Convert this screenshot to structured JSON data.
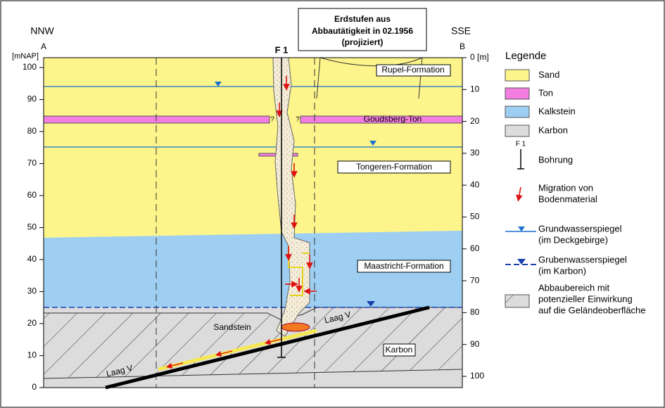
{
  "title": {
    "lines": [
      "Erdstufen aus",
      "Abbautätigkeit in 02.1956",
      "(projiziert)"
    ]
  },
  "orientation": {
    "left": "NNW",
    "right": "SSE",
    "start": "A",
    "end": "B"
  },
  "borehole": "F 1",
  "left_axis": {
    "unit": "[mNAP]",
    "ticks": [
      0,
      10,
      20,
      30,
      40,
      50,
      60,
      70,
      80,
      90,
      100
    ]
  },
  "right_axis": {
    "ticks": [
      {
        "value": 0,
        "label": "0 [m]"
      },
      10,
      20,
      30,
      40,
      50,
      60,
      70,
      80,
      90,
      100
    ]
  },
  "formations": [
    "Rupel-Formation",
    "Goudsberg-Ton",
    "Tongeren-Formation",
    "Maastricht-Formation",
    "Karbon"
  ],
  "annotations": {
    "sandstone": "Sandstein",
    "seam_left": "Laag V",
    "seam_right": "Laag V",
    "uncertain_left": "?",
    "uncertain_right": "?"
  },
  "legend": {
    "title": "Legende",
    "items": [
      {
        "lines": [
          "Sand"
        ]
      },
      {
        "lines": [
          "Ton"
        ]
      },
      {
        "lines": [
          "Kalkstein"
        ]
      },
      {
        "lines": [
          "Karbon"
        ]
      },
      {
        "symbol_label": "F 1",
        "lines": [
          "Bohrung"
        ]
      },
      {
        "lines": [
          "Migration von",
          "Bodenmaterial"
        ]
      },
      {
        "lines": [
          "Grundwasserspiegel",
          "(im Deckgebirge)"
        ]
      },
      {
        "lines": [
          "Grubenwasserspiegel",
          "(im Karbon)"
        ]
      },
      {
        "lines": [
          "Abbaubereich mit",
          "potenzieller Einwirkung",
          "auf die Geländeoberfläche"
        ]
      }
    ]
  }
}
